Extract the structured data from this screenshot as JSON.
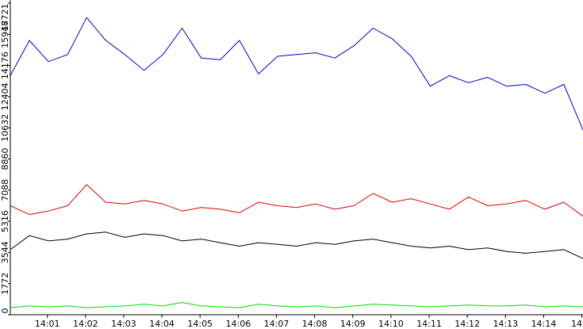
{
  "chart_data": {
    "type": "line",
    "title": "",
    "xlabel": "",
    "ylabel": "",
    "ylim": [
      0,
      17721
    ],
    "grid": false,
    "legend": "none",
    "y_tick_labels": [
      "0",
      "1772",
      "3544",
      "5316",
      "7088",
      "8860",
      "10632",
      "12404",
      "14176",
      "15948",
      "17721"
    ],
    "y_tick_values": [
      0,
      1772,
      3544,
      5316,
      7088,
      8860,
      10632,
      12404,
      14176,
      15948,
      17721
    ],
    "x_tick_labels": [
      "14:01",
      "14:02",
      "14:03",
      "14:04",
      "14:05",
      "14:06",
      "14:07",
      "14:08",
      "14:09",
      "14:10",
      "14:11",
      "14:12",
      "14:13",
      "14:14",
      "14"
    ],
    "x_tick_values": [
      0.97,
      1.97,
      2.97,
      3.97,
      4.97,
      5.97,
      6.97,
      7.97,
      8.97,
      9.97,
      10.97,
      11.97,
      12.97,
      13.97,
      14.97
    ],
    "xlim": [
      0,
      15.0
    ],
    "colors": {
      "blue": "#0000cc",
      "red": "#dd0000",
      "black": "#000000",
      "green": "#00dd00"
    },
    "series": [
      {
        "color": "#0000cc",
        "x": [
          0.0,
          0.5,
          1.0,
          1.5,
          2.0,
          2.5,
          3.0,
          3.5,
          4.0,
          4.5,
          5.0,
          5.5,
          6.0,
          6.5,
          7.0,
          7.5,
          8.0,
          8.5,
          9.0,
          9.5,
          10.0,
          10.5,
          11.0,
          11.5,
          12.0,
          12.5,
          13.0,
          13.5,
          14.0,
          14.5,
          15.0
        ],
        "values": [
          13600,
          15600,
          14400,
          14800,
          16900,
          15600,
          14800,
          13900,
          14800,
          16300,
          14600,
          14500,
          15600,
          13700,
          14700,
          14800,
          14900,
          14600,
          15300,
          16300,
          15700,
          14700,
          13000,
          13600,
          13200,
          13500,
          13000,
          13100,
          12600,
          13100,
          10500
        ]
      },
      {
        "color": "#dd0000",
        "x": [
          0.0,
          0.5,
          1.0,
          1.5,
          2.0,
          2.5,
          3.0,
          3.5,
          4.0,
          4.5,
          5.0,
          5.5,
          6.0,
          6.5,
          7.0,
          7.5,
          8.0,
          8.5,
          9.0,
          9.5,
          10.0,
          10.5,
          11.0,
          11.5,
          12.0,
          12.5,
          13.0,
          13.5,
          14.0,
          14.5,
          15.0
        ],
        "values": [
          6200,
          5700,
          5900,
          6200,
          7400,
          6400,
          6300,
          6500,
          6300,
          5900,
          6100,
          6000,
          5800,
          6400,
          6200,
          6100,
          6300,
          6000,
          6200,
          6900,
          6400,
          6600,
          6300,
          6000,
          6700,
          6200,
          6300,
          6500,
          6000,
          6400,
          5600
        ]
      },
      {
        "color": "#000000",
        "x": [
          0.0,
          0.5,
          1.0,
          1.5,
          2.0,
          2.5,
          3.0,
          3.5,
          4.0,
          4.5,
          5.0,
          5.5,
          6.0,
          6.5,
          7.0,
          7.5,
          8.0,
          8.5,
          9.0,
          9.5,
          10.0,
          10.5,
          11.0,
          11.5,
          12.0,
          12.5,
          13.0,
          13.5,
          14.0,
          14.5,
          15.0
        ],
        "values": [
          3700,
          4500,
          4200,
          4300,
          4600,
          4700,
          4400,
          4600,
          4500,
          4200,
          4300,
          4100,
          3900,
          4100,
          4000,
          3900,
          4100,
          4000,
          4200,
          4300,
          4100,
          3900,
          3800,
          3900,
          3700,
          3800,
          3600,
          3500,
          3600,
          3700,
          3200
        ]
      },
      {
        "color": "#00dd00",
        "x": [
          0.0,
          0.5,
          1.0,
          1.5,
          2.0,
          2.5,
          3.0,
          3.5,
          4.0,
          4.5,
          5.0,
          5.5,
          6.0,
          6.5,
          7.0,
          7.5,
          8.0,
          8.5,
          9.0,
          9.5,
          10.0,
          10.5,
          11.0,
          11.5,
          12.0,
          12.5,
          13.0,
          13.5,
          14.0,
          14.5,
          15.0
        ],
        "values": [
          400,
          500,
          450,
          500,
          400,
          450,
          500,
          600,
          500,
          700,
          500,
          450,
          400,
          600,
          500,
          450,
          500,
          400,
          500,
          600,
          550,
          500,
          450,
          500,
          550,
          500,
          500,
          550,
          450,
          500,
          450
        ]
      }
    ]
  }
}
